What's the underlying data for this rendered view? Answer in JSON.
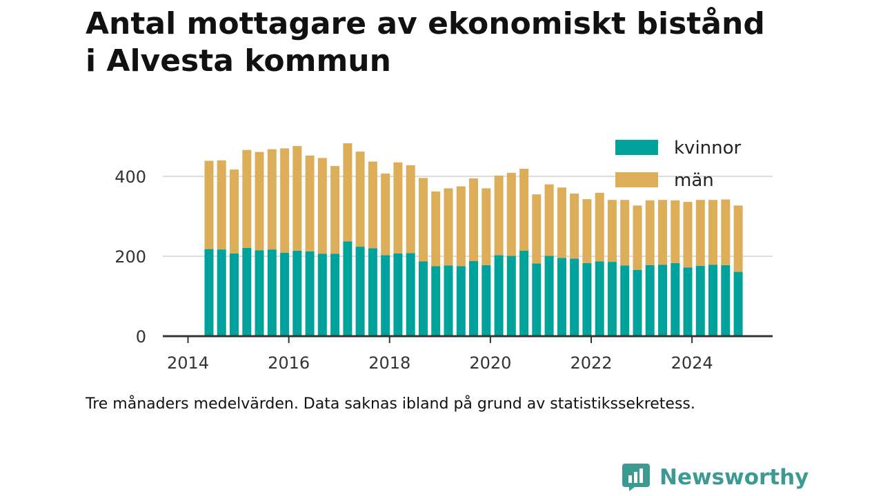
{
  "title": [
    "Antal mottagare av ekonomiskt bistånd",
    "i Alvesta kommun"
  ],
  "caption": "Tre månaders medelvärden. Data saknas ibland på grund av statistikssekretess.",
  "brand": {
    "name": "Newsworthy",
    "icon": "newsworthy-logo-icon"
  },
  "colors": {
    "kvinnor": "#00a39b",
    "man": "#dcae5a",
    "axis": "#333333",
    "grid": "#dddddd",
    "brand": "#3c9a93"
  },
  "chart_data": {
    "type": "bar",
    "stacked": true,
    "xlim": [
      2013.5,
      2025.6
    ],
    "ylim": [
      0,
      500
    ],
    "yticks": [
      0,
      200,
      400
    ],
    "xticks": [
      2014,
      2016,
      2018,
      2020,
      2022,
      2024
    ],
    "grid": true,
    "legend_position": "top-right",
    "x": [
      "2014-06",
      "2014-09",
      "2014-12",
      "2015-03",
      "2015-06",
      "2015-09",
      "2015-12",
      "2016-03",
      "2016-06",
      "2016-09",
      "2016-12",
      "2017-03",
      "2017-06",
      "2017-09",
      "2017-12",
      "2018-03",
      "2018-06",
      "2018-09",
      "2018-12",
      "2019-03",
      "2019-06",
      "2019-09",
      "2019-12",
      "2020-03",
      "2020-06",
      "2020-09",
      "2020-12",
      "2021-03",
      "2021-06",
      "2021-09",
      "2021-12",
      "2022-03",
      "2022-06",
      "2022-09",
      "2022-12",
      "2023-03",
      "2023-06",
      "2023-09",
      "2023-12",
      "2024-03",
      "2024-06",
      "2024-09",
      "2024-12"
    ],
    "series": [
      {
        "name": "kvinnor",
        "values": [
          218,
          217,
          207,
          221,
          215,
          217,
          209,
          214,
          212,
          206,
          206,
          237,
          224,
          220,
          203,
          207,
          208,
          187,
          175,
          177,
          175,
          188,
          178,
          203,
          201,
          214,
          182,
          201,
          196,
          194,
          183,
          187,
          186,
          177,
          166,
          178,
          179,
          183,
          172,
          176,
          179,
          178,
          161
        ]
      },
      {
        "name": "män",
        "values": [
          221,
          223,
          210,
          245,
          246,
          251,
          261,
          262,
          240,
          240,
          220,
          246,
          238,
          217,
          204,
          228,
          220,
          209,
          187,
          193,
          200,
          207,
          192,
          199,
          208,
          205,
          173,
          179,
          176,
          163,
          160,
          172,
          155,
          164,
          161,
          162,
          162,
          157,
          164,
          165,
          162,
          164,
          166
        ]
      }
    ]
  }
}
